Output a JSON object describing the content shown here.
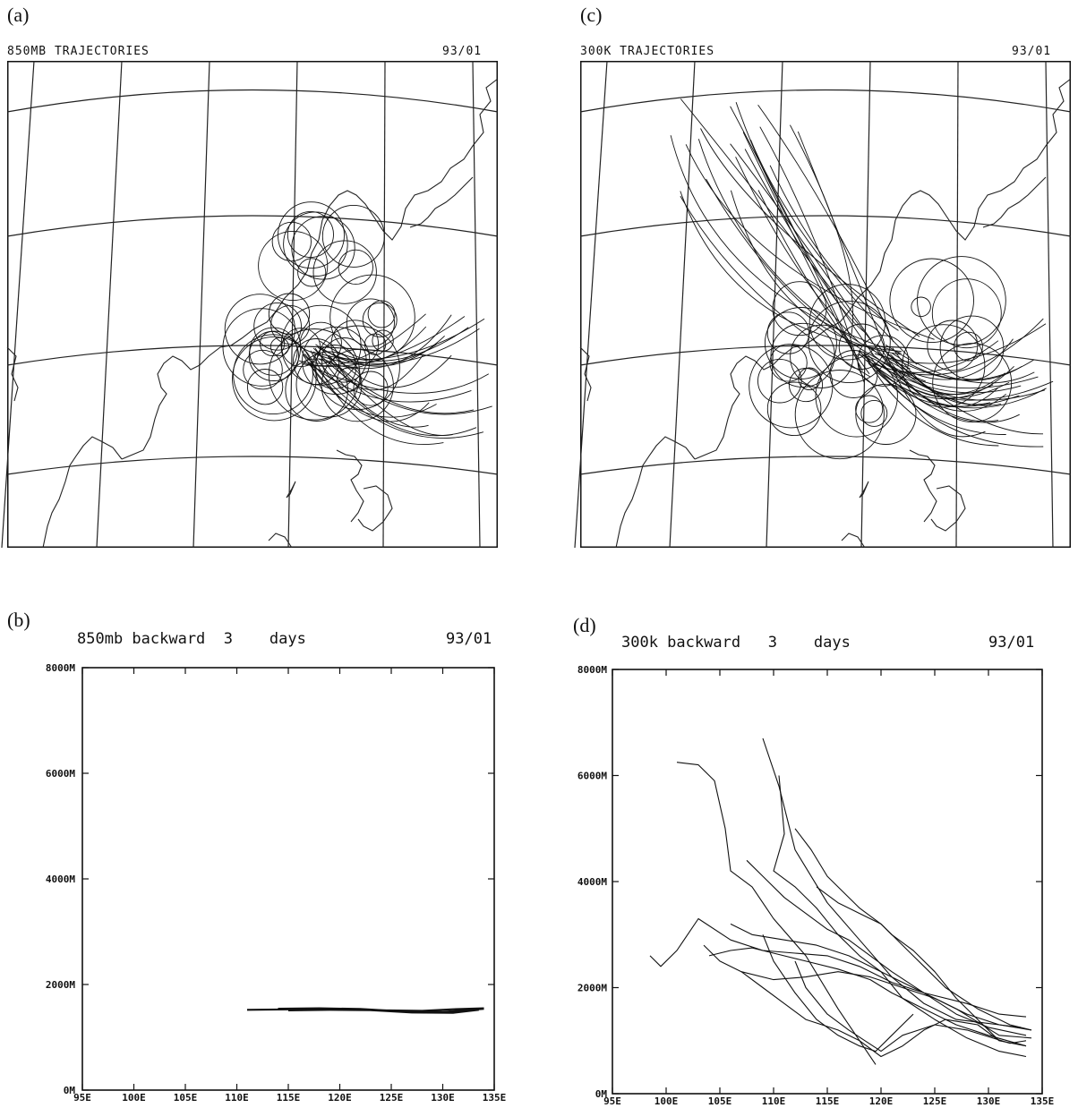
{
  "panels": {
    "a": {
      "letter": "(a)",
      "title": "850MB TRAJECTORIES",
      "date": "93/01"
    },
    "c": {
      "letter": "(c)",
      "title": "300K TRAJECTORIES",
      "date": "93/01"
    },
    "b": {
      "letter": "(b)",
      "title_left": "850mb backward  3    days",
      "date": "93/01"
    },
    "d": {
      "letter": "(d)",
      "title_left": "300k backward   3    days",
      "date": "93/01"
    }
  },
  "chart_data": [
    {
      "id": "a",
      "type": "map",
      "title": "850MB TRAJECTORIES",
      "date": "93/01"
    },
    {
      "id": "c",
      "type": "map",
      "title": "300K TRAJECTORIES",
      "date": "93/01"
    },
    {
      "id": "b",
      "type": "line",
      "title": "850mb backward  3    days",
      "date": "93/01",
      "xlim": [
        95,
        135
      ],
      "ylim": [
        0,
        8000
      ],
      "x_ticks": [
        "95E",
        "100E",
        "105E",
        "110E",
        "115E",
        "120E",
        "125E",
        "130E",
        "135E"
      ],
      "y_ticks": [
        "0M",
        "2000M",
        "4000M",
        "6000M",
        "8000M"
      ],
      "series": [
        {
          "x": [
            111,
            116,
            120,
            124,
            128,
            131,
            134
          ],
          "y": [
            1520,
            1530,
            1540,
            1510,
            1500,
            1530,
            1550
          ]
        },
        {
          "x": [
            114,
            118,
            122,
            126,
            130,
            134
          ],
          "y": [
            1540,
            1550,
            1535,
            1490,
            1480,
            1540
          ]
        },
        {
          "x": [
            115,
            119,
            123,
            127,
            131,
            133.5
          ],
          "y": [
            1510,
            1520,
            1515,
            1470,
            1465,
            1520
          ]
        }
      ]
    },
    {
      "id": "d",
      "type": "line",
      "title": "300k backward   3    days",
      "date": "93/01",
      "xlim": [
        95,
        135
      ],
      "ylim": [
        0,
        8000
      ],
      "x_ticks": [
        "95E",
        "100E",
        "105E",
        "110E",
        "115E",
        "120E",
        "125E",
        "130E",
        "135E"
      ],
      "y_ticks": [
        "0M",
        "2000M",
        "4000M",
        "6000M",
        "8000M"
      ],
      "series": [
        {
          "x": [
            101,
            103,
            104.5,
            105.5,
            106,
            108,
            110,
            113,
            116,
            119.5
          ],
          "y": [
            6250,
            6200,
            5900,
            5000,
            4200,
            3900,
            3300,
            2600,
            1600,
            550
          ]
        },
        {
          "x": [
            109,
            110.5,
            112,
            115,
            118,
            121,
            124,
            127,
            131,
            134
          ],
          "y": [
            6700,
            5800,
            4600,
            3600,
            2900,
            2200,
            1700,
            1400,
            1300,
            1200
          ]
        },
        {
          "x": [
            110.5,
            111,
            110,
            112,
            114,
            116,
            118,
            120,
            123,
            127,
            131,
            134
          ],
          "y": [
            6000,
            4900,
            4200,
            3900,
            3500,
            3000,
            2600,
            2300,
            2000,
            1600,
            1100,
            1050
          ]
        },
        {
          "x": [
            98.5,
            99.5,
            101,
            103,
            106,
            109,
            112,
            115,
            118,
            121,
            124,
            128,
            131,
            133.5
          ],
          "y": [
            2600,
            2400,
            2700,
            3300,
            2900,
            2700,
            2650,
            2600,
            2400,
            2100,
            1900,
            1700,
            1500,
            1450
          ]
        },
        {
          "x": [
            104,
            106,
            108,
            110,
            113,
            116,
            119,
            121,
            124,
            127,
            130,
            133.5
          ],
          "y": [
            2600,
            2700,
            2750,
            2650,
            2500,
            2350,
            2150,
            1900,
            1600,
            1300,
            1100,
            900
          ]
        },
        {
          "x": [
            106,
            108,
            111,
            114,
            117,
            120,
            122,
            125,
            128,
            131,
            133.5
          ],
          "y": [
            3200,
            3000,
            2900,
            2800,
            2600,
            2300,
            1800,
            1400,
            1050,
            800,
            700
          ]
        },
        {
          "x": [
            107.5,
            109,
            111,
            113,
            115,
            117,
            119,
            121,
            124,
            127,
            130,
            133.5
          ],
          "y": [
            4400,
            4100,
            3700,
            3400,
            3100,
            2900,
            2600,
            2300,
            1900,
            1500,
            1250,
            1100
          ]
        },
        {
          "x": [
            112,
            113.5,
            115,
            116.5,
            118,
            120,
            122,
            124,
            126,
            129,
            132,
            134
          ],
          "y": [
            5000,
            4600,
            4100,
            3800,
            3500,
            3200,
            2800,
            2400,
            2000,
            1600,
            1300,
            1200
          ]
        },
        {
          "x": [
            114,
            116,
            118,
            120,
            121,
            123,
            125,
            127,
            129,
            131,
            133.5
          ],
          "y": [
            3900,
            3600,
            3400,
            3200,
            3000,
            2700,
            2300,
            1800,
            1400,
            1000,
            900
          ]
        },
        {
          "x": [
            109,
            110,
            112,
            114,
            116,
            118,
            119.5,
            121,
            123
          ],
          "y": [
            3000,
            2500,
            1900,
            1400,
            1100,
            900,
            800,
            1100,
            1500
          ]
        },
        {
          "x": [
            112,
            113,
            115,
            117,
            118.5,
            120,
            122,
            125,
            128,
            132,
            133.5
          ],
          "y": [
            2500,
            2000,
            1500,
            1200,
            1000,
            800,
            1100,
            1300,
            1200,
            950,
            1000
          ]
        },
        {
          "x": [
            107,
            109,
            111,
            113,
            116,
            118,
            120,
            122,
            124,
            126,
            129,
            131
          ],
          "y": [
            2300,
            2000,
            1700,
            1400,
            1200,
            1000,
            700,
            900,
            1200,
            1400,
            1300,
            1000
          ]
        },
        {
          "x": [
            103.5,
            105,
            107,
            110,
            113,
            116,
            119,
            122,
            125,
            128,
            131,
            133
          ],
          "y": [
            2800,
            2500,
            2300,
            2150,
            2200,
            2300,
            2200,
            2000,
            1800,
            1500,
            1300,
            1250
          ]
        }
      ]
    }
  ]
}
